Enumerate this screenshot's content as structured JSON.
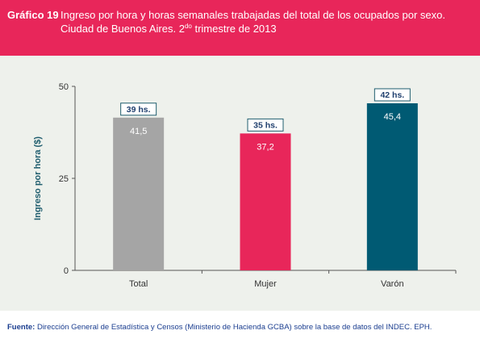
{
  "header": {
    "label": "Gráfico 19",
    "title_line1": "Ingreso por hora y horas semanales trabajadas del total de los ocupados por sexo.",
    "title_line2_pre": "Ciudad de Buenos Aires. 2",
    "title_line2_sup": "do",
    "title_line2_post": " trimestre de 2013"
  },
  "footer": {
    "source_label": "Fuente:",
    "source_text": " Dirección General de Estadística y Censos (Ministerio de Hacienda GCBA) sobre la base de datos del INDEC. EPH."
  },
  "chart_data": {
    "type": "bar",
    "ylabel": "Ingreso por hora ($)",
    "ylim": [
      0,
      50
    ],
    "yticks": [
      "0",
      "25",
      "50"
    ],
    "categories": [
      "Total",
      "Mujer",
      "Varón"
    ],
    "values": [
      41.5,
      37.2,
      45.4
    ],
    "value_labels": [
      "41,5",
      "37,2",
      "45,4"
    ],
    "hours_labels": [
      "39 hs.",
      "35 hs.",
      "42 hs."
    ],
    "colors": [
      "#a5a5a5",
      "#e8265a",
      "#005a73"
    ],
    "grid": false
  }
}
